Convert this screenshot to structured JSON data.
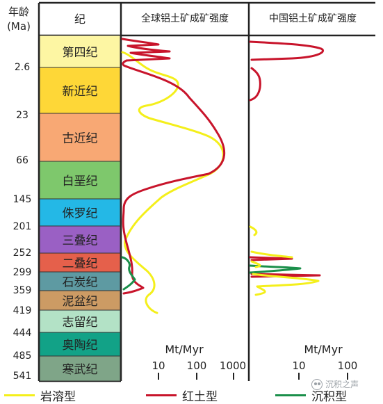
{
  "header": {
    "age_label": "年龄",
    "age_unit": "(Ma)",
    "period_label": "纪",
    "global_title": "全球铝土矿成矿强度",
    "china_title": "中国铝土矿成矿强度"
  },
  "periods": [
    {
      "name": "第四纪",
      "color": "#fdf6a3"
    },
    {
      "name": "新近纪",
      "color": "#fed737"
    },
    {
      "name": "古近纪",
      "color": "#f8a874"
    },
    {
      "name": "白垩纪",
      "color": "#7ec86c"
    },
    {
      "name": "侏罗纪",
      "color": "#24b8e6"
    },
    {
      "name": "三叠纪",
      "color": "#9a60c4"
    },
    {
      "name": "二叠纪",
      "color": "#e5604b"
    },
    {
      "name": "石炭纪",
      "color": "#5e9aa2"
    },
    {
      "name": "泥盆纪",
      "color": "#cc9b64"
    },
    {
      "name": "志留纪",
      "color": "#b3e2c6"
    },
    {
      "name": "奥陶纪",
      "color": "#12a287"
    },
    {
      "name": "寒武纪",
      "color": "#7fa588"
    }
  ],
  "ages": [
    "2.6",
    "23",
    "66",
    "145",
    "201",
    "252",
    "299",
    "359",
    "419",
    "444",
    "485",
    "541"
  ],
  "axes": {
    "global_unit": "Mt/Myr",
    "global_ticks": [
      "10",
      "100",
      "1000"
    ],
    "china_unit": "Mt/Myr",
    "china_ticks": [
      "10",
      "100"
    ]
  },
  "legend": [
    {
      "label": "岩溶型",
      "color": "#f4ef1b"
    },
    {
      "label": "红土型",
      "color": "#c8142b"
    },
    {
      "label": "沉积型",
      "color": "#1a8f4a"
    }
  ],
  "watermark": "沉积之声"
}
